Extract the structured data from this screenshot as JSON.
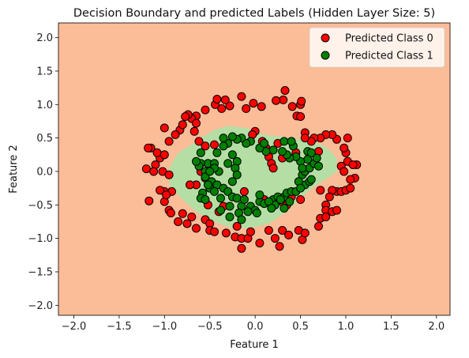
{
  "chart_data": {
    "type": "scatter",
    "title": "Decision Boundary and predicted Labels (Hidden Layer Size: 5)",
    "xlabel": "Feature 1",
    "ylabel": "Feature 2",
    "xlim": [
      -2.17,
      2.15
    ],
    "ylim": [
      -2.15,
      2.22
    ],
    "xticks": [
      "-2.0",
      "-1.5",
      "-1.0",
      "-0.5",
      "0.0",
      "0.5",
      "1.0",
      "1.5",
      "2.0"
    ],
    "yticks": [
      "-2.0",
      "-1.5",
      "-1.0",
      "-0.5",
      "0.0",
      "0.5",
      "1.0",
      "1.5",
      "2.0"
    ],
    "legend_position": "top-right",
    "colors": {
      "background_region": "#fbbc98",
      "class1_region": "#b5dea5",
      "class0_point": "#ff0000",
      "class1_point": "#008000",
      "edge": "#000000"
    },
    "region_class1_boundary": [
      [
        -0.95,
        0.05
      ],
      [
        -0.85,
        0.28
      ],
      [
        -0.7,
        0.4
      ],
      [
        -0.6,
        0.5
      ],
      [
        -0.45,
        0.62
      ],
      [
        -0.3,
        0.68
      ],
      [
        -0.1,
        0.65
      ],
      [
        0.1,
        0.55
      ],
      [
        0.3,
        0.52
      ],
      [
        0.5,
        0.48
      ],
      [
        0.65,
        0.45
      ],
      [
        0.8,
        0.35
      ],
      [
        0.9,
        0.2
      ],
      [
        0.9,
        0.0
      ],
      [
        0.8,
        -0.1
      ],
      [
        0.65,
        -0.22
      ],
      [
        0.52,
        -0.38
      ],
      [
        0.35,
        -0.6
      ],
      [
        0.15,
        -0.78
      ],
      [
        -0.05,
        -0.85
      ],
      [
        -0.25,
        -0.85
      ],
      [
        -0.45,
        -0.75
      ],
      [
        -0.65,
        -0.6
      ],
      [
        -0.82,
        -0.4
      ],
      [
        -0.95,
        -0.2
      ]
    ],
    "series": [
      {
        "name": "Predicted Class 0",
        "points": [
          [
            0.33,
            1.21
          ],
          [
            0.31,
            1.07
          ],
          [
            0.23,
            1.06
          ],
          [
            -0.02,
            1.02
          ],
          [
            -0.1,
            0.94
          ],
          [
            0.07,
            0.97
          ],
          [
            -0.37,
            0.94
          ],
          [
            -0.44,
            1.0
          ],
          [
            -0.28,
            0.98
          ],
          [
            -0.55,
            0.92
          ],
          [
            -0.65,
            0.83
          ],
          [
            -0.42,
            1.08
          ],
          [
            -0.33,
            1.07
          ],
          [
            -0.15,
            1.12
          ],
          [
            0.41,
            0.97
          ],
          [
            0.5,
            1.0
          ],
          [
            0.51,
            1.05
          ],
          [
            0.46,
            0.83
          ],
          [
            0.5,
            0.82
          ],
          [
            -0.7,
            0.79
          ],
          [
            -0.74,
            0.85
          ],
          [
            -0.65,
            0.72
          ],
          [
            -0.67,
            0.6
          ],
          [
            -0.83,
            0.62
          ],
          [
            -0.77,
            0.82
          ],
          [
            -0.8,
            0.7
          ],
          [
            -0.62,
            0.45
          ],
          [
            -0.88,
            0.55
          ],
          [
            -0.95,
            0.45
          ],
          [
            -1.0,
            0.65
          ],
          [
            -1.15,
            0.35
          ],
          [
            -1.18,
            0.35
          ],
          [
            -1.1,
            0.1
          ],
          [
            -1.05,
            0.2
          ],
          [
            -1.12,
            0.0
          ],
          [
            -1.2,
            0.04
          ],
          [
            -1.02,
            -0.0
          ],
          [
            -0.95,
            -0.05
          ],
          [
            -0.92,
            -0.3
          ],
          [
            -1.0,
            -0.3
          ],
          [
            -1.05,
            -0.28
          ],
          [
            -1.17,
            -0.44
          ],
          [
            -1.0,
            -0.45
          ],
          [
            -0.65,
            -0.2
          ],
          [
            -0.72,
            -0.2
          ],
          [
            -0.95,
            -0.58
          ],
          [
            -0.93,
            -0.62
          ],
          [
            -0.8,
            -0.63
          ],
          [
            -0.75,
            -0.78
          ],
          [
            -0.85,
            -0.75
          ],
          [
            -0.7,
            -0.68
          ],
          [
            -0.65,
            -0.85
          ],
          [
            -0.55,
            -0.72
          ],
          [
            -0.5,
            -0.78
          ],
          [
            -0.5,
            -0.88
          ],
          [
            -0.45,
            -0.9
          ],
          [
            -0.32,
            -0.92
          ],
          [
            -0.22,
            -0.98
          ],
          [
            -0.2,
            -0.82
          ],
          [
            -0.15,
            -1.0
          ],
          [
            -0.08,
            -1.0
          ],
          [
            -0.15,
            -1.15
          ],
          [
            -0.05,
            -0.9
          ],
          [
            0.05,
            -1.07
          ],
          [
            0.15,
            -0.88
          ],
          [
            0.22,
            -1.0
          ],
          [
            0.3,
            -0.88
          ],
          [
            0.37,
            -0.95
          ],
          [
            0.27,
            -1.12
          ],
          [
            0.48,
            -0.88
          ],
          [
            0.52,
            -1.02
          ],
          [
            0.55,
            -0.92
          ],
          [
            0.72,
            -0.7
          ],
          [
            0.7,
            -0.82
          ],
          [
            0.78,
            -0.5
          ],
          [
            0.78,
            -0.58
          ],
          [
            0.78,
            -0.68
          ],
          [
            0.9,
            -0.3
          ],
          [
            0.85,
            -0.28
          ],
          [
            0.82,
            -0.38
          ],
          [
            0.85,
            -0.6
          ],
          [
            0.9,
            -0.58
          ],
          [
            0.95,
            -0.3
          ],
          [
            1.0,
            -0.28
          ],
          [
            1.05,
            -0.25
          ],
          [
            1.1,
            -0.1
          ],
          [
            1.05,
            -0.12
          ],
          [
            1.12,
            0.1
          ],
          [
            1.02,
            0.15
          ],
          [
            0.95,
            0.08
          ],
          [
            0.98,
            0.0
          ],
          [
            1.08,
            0.1
          ],
          [
            1.02,
            0.5
          ],
          [
            1.0,
            0.28
          ],
          [
            0.98,
            0.35
          ],
          [
            0.9,
            0.48
          ],
          [
            0.85,
            0.55
          ],
          [
            0.78,
            0.55
          ],
          [
            0.72,
            0.5
          ],
          [
            0.65,
            0.5
          ],
          [
            0.62,
            0.45
          ],
          [
            0.55,
            0.58
          ],
          [
            0.55,
            0.5
          ],
          [
            0.45,
            0.28
          ],
          [
            0.3,
            0.2
          ],
          [
            0.15,
            0.22
          ],
          [
            0.12,
            0.35
          ],
          [
            0.08,
            0.45
          ],
          [
            0.0,
            0.6
          ],
          [
            -0.03,
            0.55
          ],
          [
            0.25,
            0.42
          ],
          [
            0.18,
            0.12
          ],
          [
            0.2,
            0.05
          ],
          [
            -0.12,
            -0.3
          ],
          [
            -0.35,
            -0.52
          ],
          [
            0.3,
            -0.45
          ],
          [
            0.35,
            -0.5
          ],
          [
            -0.45,
            0.4
          ],
          [
            -0.55,
            0.38
          ],
          [
            0.7,
            0.3
          ],
          [
            0.72,
            -0.28
          ],
          [
            -0.98,
            -0.35
          ],
          [
            -1.08,
            0.28
          ],
          [
            -1.0,
            0.25
          ],
          [
            -0.6,
            -0.0
          ],
          [
            -0.55,
            -0.1
          ],
          [
            -0.52,
            -0.5
          ],
          [
            -0.4,
            -0.6
          ],
          [
            0.1,
            -0.42
          ],
          [
            0.4,
            -0.38
          ],
          [
            0.5,
            -0.42
          ]
        ]
      },
      {
        "name": "Predicted Class 1",
        "points": [
          [
            -0.52,
            0.12
          ],
          [
            -0.45,
            0.12
          ],
          [
            -0.4,
            0.0
          ],
          [
            -0.55,
            0.0
          ],
          [
            -0.6,
            0.12
          ],
          [
            -0.62,
            0.08
          ],
          [
            -0.55,
            -0.08
          ],
          [
            -0.48,
            -0.15
          ],
          [
            -0.42,
            -0.2
          ],
          [
            -0.5,
            -0.25
          ],
          [
            -0.58,
            -0.32
          ],
          [
            -0.6,
            -0.4
          ],
          [
            -0.55,
            -0.42
          ],
          [
            -0.45,
            -0.3
          ],
          [
            -0.35,
            -0.25
          ],
          [
            -0.3,
            -0.3
          ],
          [
            -0.25,
            -0.38
          ],
          [
            -0.2,
            -0.4
          ],
          [
            -0.28,
            -0.52
          ],
          [
            -0.15,
            -0.52
          ],
          [
            -0.05,
            -0.52
          ],
          [
            0.0,
            -0.58
          ],
          [
            0.02,
            -0.62
          ],
          [
            0.05,
            -0.45
          ],
          [
            0.1,
            -0.48
          ],
          [
            0.2,
            -0.42
          ],
          [
            0.22,
            -0.5
          ],
          [
            0.25,
            -0.38
          ],
          [
            0.32,
            -0.38
          ],
          [
            0.35,
            -0.32
          ],
          [
            0.4,
            -0.3
          ],
          [
            0.45,
            -0.3
          ],
          [
            0.55,
            -0.2
          ],
          [
            0.6,
            -0.15
          ],
          [
            0.62,
            -0.12
          ],
          [
            0.52,
            -0.05
          ],
          [
            0.55,
            0.0
          ],
          [
            0.6,
            0.05
          ],
          [
            0.65,
            0.12
          ],
          [
            0.7,
            0.08
          ],
          [
            0.68,
            0.2
          ],
          [
            0.58,
            0.18
          ],
          [
            0.5,
            0.15
          ],
          [
            0.45,
            0.22
          ],
          [
            0.38,
            0.2
          ],
          [
            0.35,
            0.25
          ],
          [
            0.3,
            0.3
          ],
          [
            0.42,
            0.38
          ],
          [
            0.32,
            0.45
          ],
          [
            0.4,
            0.45
          ],
          [
            0.2,
            0.32
          ],
          [
            0.12,
            0.3
          ],
          [
            0.05,
            0.35
          ],
          [
            -0.05,
            0.45
          ],
          [
            -0.1,
            0.42
          ],
          [
            -0.15,
            0.5
          ],
          [
            -0.2,
            0.48
          ],
          [
            -0.25,
            0.52
          ],
          [
            -0.3,
            0.42
          ],
          [
            -0.35,
            0.38
          ],
          [
            -0.42,
            0.28
          ],
          [
            -0.6,
            0.28
          ],
          [
            -0.25,
            0.25
          ],
          [
            -0.2,
            0.15
          ],
          [
            -0.3,
            0.12
          ],
          [
            -0.22,
            0.05
          ],
          [
            -0.2,
            -0.05
          ],
          [
            -0.25,
            -0.15
          ],
          [
            -0.12,
            -0.42
          ],
          [
            -0.08,
            -0.6
          ],
          [
            -0.18,
            -0.62
          ],
          [
            -0.38,
            -0.58
          ],
          [
            -0.28,
            -0.68
          ],
          [
            -0.15,
            -0.72
          ],
          [
            0.05,
            -0.35
          ],
          [
            0.15,
            -0.45
          ],
          [
            0.28,
            -0.42
          ],
          [
            0.32,
            -0.55
          ],
          [
            0.38,
            -0.45
          ],
          [
            0.48,
            -0.15
          ],
          [
            0.5,
            -0.25
          ],
          [
            0.52,
            0.05
          ],
          [
            0.58,
            0.3
          ],
          [
            0.62,
            0.28
          ],
          [
            0.1,
            0.42
          ],
          [
            -0.35,
            0.5
          ],
          [
            -0.45,
            0.05
          ],
          [
            -0.52,
            -0.2
          ],
          [
            -0.5,
            0.0
          ],
          [
            -0.65,
            0.15
          ],
          [
            -0.38,
            -0.4
          ],
          [
            0.18,
            -0.55
          ]
        ]
      }
    ]
  }
}
